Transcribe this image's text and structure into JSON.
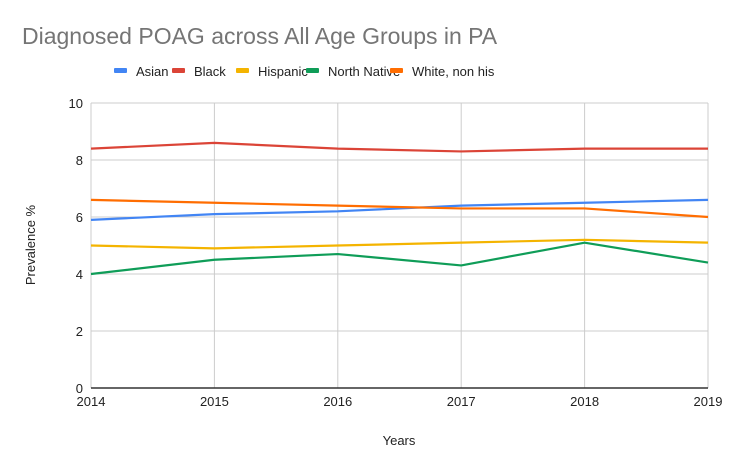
{
  "chart_data": {
    "type": "line",
    "title": "Diagnosed POAG across All Age Groups in PA",
    "xlabel": "Years",
    "ylabel": "Prevalence %",
    "x": [
      "2014",
      "2015",
      "2016",
      "2017",
      "2018",
      "2019"
    ],
    "ylim": [
      0,
      10
    ],
    "yticks": [
      "0",
      "2",
      "4",
      "6",
      "8",
      "10"
    ],
    "grid": true,
    "legend_position": "top",
    "series": [
      {
        "name": "Asian",
        "color": "#4285f4",
        "values": [
          5.9,
          6.1,
          6.2,
          6.4,
          6.5,
          6.6
        ]
      },
      {
        "name": "Black",
        "color": "#db4437",
        "values": [
          8.4,
          8.6,
          8.4,
          8.3,
          8.4,
          8.4
        ]
      },
      {
        "name": "Hispanic",
        "color": "#f4b400",
        "values": [
          5.0,
          4.9,
          5.0,
          5.1,
          5.2,
          5.1
        ]
      },
      {
        "name": "North Native",
        "color": "#0f9d58",
        "values": [
          4.0,
          4.5,
          4.7,
          4.3,
          5.1,
          4.4
        ]
      },
      {
        "name": "White, non his",
        "color": "#ff6d01",
        "values": [
          6.6,
          6.5,
          6.4,
          6.3,
          6.3,
          6.0
        ]
      }
    ]
  }
}
